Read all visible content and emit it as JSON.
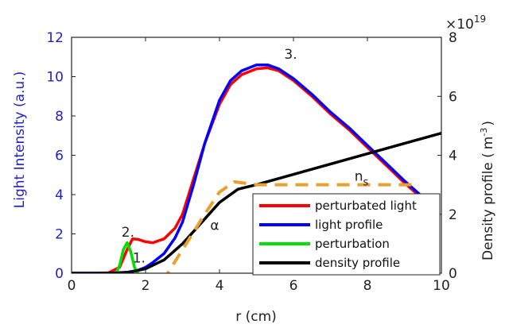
{
  "chart_data": {
    "type": "line",
    "xlabel": "r (cm)",
    "ylabel": "Light Intensity (a.u.)",
    "y2label_main": "Density profile (",
    "y2label_unit": "m",
    "y2label_exp": "-3",
    "y2label_close": ")",
    "y2_multiplier_base": "×10",
    "y2_multiplier_exp": "19",
    "xlim": [
      0,
      10
    ],
    "ylim": [
      0,
      12
    ],
    "y2lim": [
      0,
      8
    ],
    "x_ticks": [
      "0",
      "2",
      "4",
      "6",
      "8",
      "10"
    ],
    "y_ticks": [
      "0",
      "2",
      "4",
      "6",
      "8",
      "10",
      "12"
    ],
    "y2_ticks": [
      "0",
      "2",
      "4",
      "6",
      "8"
    ],
    "legend_position": "bottom-right",
    "grid": false,
    "series": [
      {
        "name": "perturbated light",
        "color": "#ff0000",
        "axis": "left",
        "x": [
          0,
          0.5,
          1.0,
          1.3,
          1.5,
          1.65,
          1.8,
          2.0,
          2.2,
          2.5,
          2.8,
          3.0,
          3.3,
          3.6,
          4.0,
          4.3,
          4.6,
          5.0,
          5.3,
          5.6,
          6.0,
          6.5,
          7.0,
          7.5,
          8.0,
          8.5,
          9.0,
          9.6
        ],
        "values": [
          0,
          0,
          0.02,
          0.3,
          1.2,
          1.75,
          1.72,
          1.6,
          1.55,
          1.75,
          2.3,
          3.0,
          4.8,
          6.6,
          8.6,
          9.6,
          10.1,
          10.4,
          10.45,
          10.3,
          9.8,
          9.0,
          8.1,
          7.3,
          6.4,
          5.5,
          4.6,
          3.6
        ]
      },
      {
        "name": "light profile",
        "color": "#0000ff",
        "axis": "left",
        "x": [
          0,
          1.0,
          1.5,
          1.8,
          2.0,
          2.2,
          2.5,
          2.8,
          3.0,
          3.3,
          3.6,
          4.0,
          4.3,
          4.6,
          5.0,
          5.3,
          5.6,
          6.0,
          6.5,
          7.0,
          7.5,
          8.0,
          8.5,
          9.0,
          9.6
        ],
        "values": [
          0,
          0,
          0.05,
          0.15,
          0.3,
          0.55,
          1.0,
          1.8,
          2.6,
          4.5,
          6.6,
          8.8,
          9.8,
          10.3,
          10.6,
          10.6,
          10.4,
          9.9,
          9.1,
          8.2,
          7.4,
          6.5,
          5.6,
          4.7,
          3.7
        ]
      },
      {
        "name": "perturbation",
        "color": "#00e000",
        "axis": "left",
        "x": [
          1.2,
          1.3,
          1.4,
          1.5,
          1.6,
          1.7,
          1.8
        ],
        "values": [
          0,
          0.4,
          1.2,
          1.55,
          1.1,
          0.3,
          0
        ]
      },
      {
        "name": "density profile",
        "color": "#000000",
        "axis": "right",
        "x": [
          0,
          1.0,
          1.5,
          2.0,
          2.5,
          3.0,
          3.5,
          4.0,
          4.5,
          5.0,
          6.0,
          7.0,
          8.0,
          9.0,
          10.0
        ],
        "values": [
          0,
          0,
          0.02,
          0.15,
          0.45,
          1.0,
          1.7,
          2.4,
          2.85,
          3.0,
          3.35,
          3.7,
          4.05,
          4.4,
          4.75
        ]
      },
      {
        "color": "#e8a030",
        "axis": "right",
        "dashed": true,
        "x": [
          2.45,
          2.8,
          3.2,
          3.6,
          4.0,
          4.4,
          5.0,
          6.0,
          7.0,
          8.0,
          9.0,
          9.3
        ],
        "values": [
          -0.3,
          0.4,
          1.2,
          2.0,
          2.75,
          3.1,
          3.0,
          3.0,
          3.0,
          3.0,
          3.0,
          3.0
        ]
      }
    ],
    "annotations": [
      {
        "text": "1.",
        "x": 1.65,
        "y": 0.55
      },
      {
        "text": "2.",
        "x": 1.35,
        "y": 1.85
      },
      {
        "text": "3.",
        "x": 5.75,
        "y": 10.9
      },
      {
        "text": "α",
        "x": 3.75,
        "y": 2.2
      },
      {
        "text": "n",
        "sub": "s",
        "x": 7.65,
        "y": 4.7
      }
    ]
  }
}
